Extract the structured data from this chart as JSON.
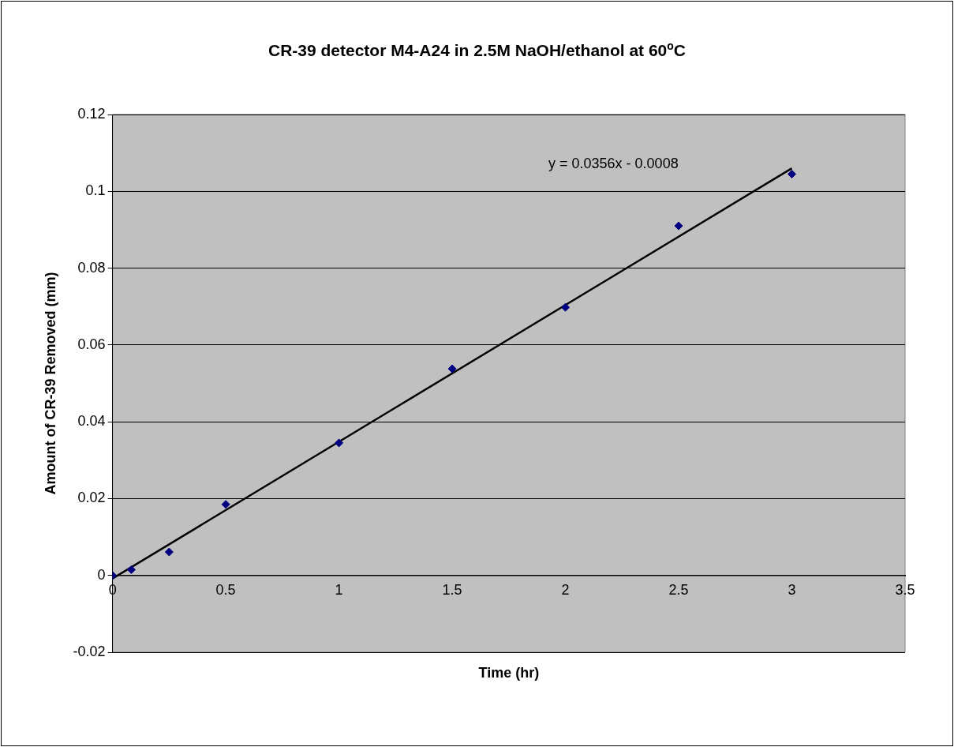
{
  "chart_data": {
    "type": "scatter",
    "title": "CR-39 detector M4-A24 in 2.5M NaOH/ethanol at 60$^{o}$C",
    "xlabel": "Time (hr)",
    "ylabel": "Amount of CR-39 Removed (mm)",
    "series": [
      {
        "type": "scatter",
        "color": "#000080",
        "marker": "diamond",
        "x": [
          0,
          0.083,
          0.25,
          0.5,
          1,
          1.5,
          2,
          2.5,
          3
        ],
        "values": [
          0,
          0.0015,
          0.0061,
          0.0185,
          0.0345,
          0.0538,
          0.0698,
          0.091,
          0.1045
        ]
      },
      {
        "type": "line",
        "color": "#000000",
        "marker": "none",
        "x": [
          0,
          3
        ],
        "values": [
          -0.0008,
          0.106
        ]
      }
    ],
    "annotations": [
      "y = 0.0356x - 0.0008"
    ],
    "xlim": [
      0,
      3.5
    ],
    "xticks": [
      0,
      0.5,
      1,
      1.5,
      2,
      2.5,
      3,
      3.5
    ],
    "ylim": [
      -0.02,
      0.12
    ],
    "yticks": [
      -0.02,
      0,
      0.02,
      0.04,
      0.06,
      0.08,
      0.1,
      0.12
    ],
    "grid": "y",
    "legend": false
  }
}
